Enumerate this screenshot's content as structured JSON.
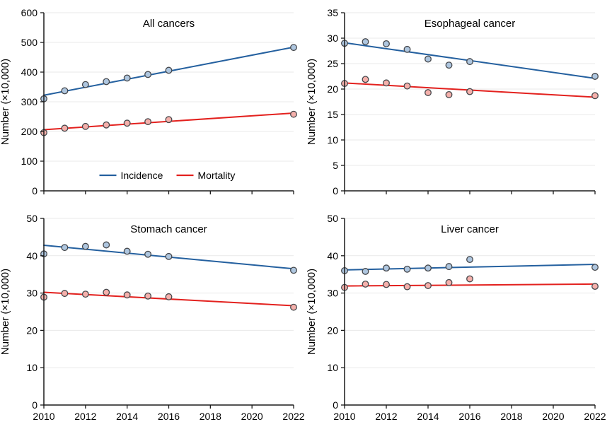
{
  "figure": {
    "legend": {
      "incidence_label": "Incidence",
      "mortality_label": "Mortality"
    },
    "colors": {
      "incidence_line": "#24609f",
      "incidence_marker_fill": "#aec6df",
      "mortality_line": "#e3211e",
      "mortality_marker_fill": "#f5b0ab",
      "marker_stroke": "#45474b",
      "axis": "#1a1a1a",
      "gridline": "#e9e9e9"
    }
  },
  "chart_data": [
    {
      "type": "scatter",
      "title": "All cancers",
      "ylabel": "Number (×10,000)",
      "xlabel": "",
      "x": [
        2010,
        2011,
        2012,
        2013,
        2014,
        2015,
        2016,
        2022
      ],
      "xlim": [
        2010,
        2022
      ],
      "xticks": [
        2010,
        2012,
        2014,
        2016,
        2018,
        2020,
        2022
      ],
      "ylim": [
        0,
        600
      ],
      "yticks": [
        0,
        100,
        200,
        300,
        400,
        500,
        600
      ],
      "grid": "horizontal",
      "legend_position": "inside-bottom-center",
      "series": [
        {
          "name": "Incidence",
          "values": [
            310,
            337,
            358,
            368,
            380,
            392,
            406,
            483
          ],
          "trend_2010_2022": [
            322,
            484
          ]
        },
        {
          "name": "Mortality",
          "values": [
            196,
            211,
            217,
            222,
            228,
            233,
            240,
            258
          ],
          "trend_2010_2022": [
            206,
            262
          ]
        }
      ]
    },
    {
      "type": "scatter",
      "title": "Esophageal cancer",
      "ylabel": "Number (×10,000)",
      "xlabel": "",
      "x": [
        2010,
        2011,
        2012,
        2013,
        2014,
        2015,
        2016,
        2022
      ],
      "xlim": [
        2010,
        2022
      ],
      "xticks": [
        2010,
        2012,
        2014,
        2016,
        2018,
        2020,
        2022
      ],
      "ylim": [
        0,
        35
      ],
      "yticks": [
        0,
        5,
        10,
        15,
        20,
        25,
        30,
        35
      ],
      "grid": "horizontal",
      "legend_position": "none",
      "series": [
        {
          "name": "Incidence",
          "values": [
            29.0,
            29.3,
            28.9,
            27.8,
            25.9,
            24.7,
            25.4,
            22.5
          ],
          "trend_2010_2022": [
            29.1,
            22.1
          ]
        },
        {
          "name": "Mortality",
          "values": [
            21.1,
            21.9,
            21.2,
            20.6,
            19.3,
            18.9,
            19.5,
            18.7
          ],
          "trend_2010_2022": [
            21.2,
            18.4
          ]
        }
      ]
    },
    {
      "type": "scatter",
      "title": "Stomach cancer",
      "ylabel": "Number (×10,000)",
      "xlabel": "",
      "x": [
        2010,
        2011,
        2012,
        2013,
        2014,
        2015,
        2016,
        2022
      ],
      "xlim": [
        2010,
        2022
      ],
      "xticks": [
        2010,
        2012,
        2014,
        2016,
        2018,
        2020,
        2022
      ],
      "ylim": [
        0,
        50
      ],
      "yticks": [
        0,
        10,
        20,
        30,
        40,
        50
      ],
      "grid": "horizontal",
      "legend_position": "none",
      "series": [
        {
          "name": "Incidence",
          "values": [
            40.5,
            42.2,
            42.5,
            42.9,
            41.2,
            40.4,
            39.8,
            36.1
          ],
          "trend_2010_2022": [
            42.8,
            36.5
          ]
        },
        {
          "name": "Mortality",
          "values": [
            28.9,
            29.9,
            29.7,
            30.2,
            29.5,
            29.2,
            29.0,
            26.2
          ],
          "trend_2010_2022": [
            30.2,
            26.6
          ]
        }
      ]
    },
    {
      "type": "scatter",
      "title": "Liver cancer",
      "ylabel": "Number (×10,000)",
      "xlabel": "",
      "x": [
        2010,
        2011,
        2012,
        2013,
        2014,
        2015,
        2016,
        2022
      ],
      "xlim": [
        2010,
        2022
      ],
      "xticks": [
        2010,
        2012,
        2014,
        2016,
        2018,
        2020,
        2022
      ],
      "ylim": [
        0,
        50
      ],
      "yticks": [
        0,
        10,
        20,
        30,
        40,
        50
      ],
      "grid": "horizontal",
      "legend_position": "none",
      "series": [
        {
          "name": "Incidence",
          "values": [
            36.0,
            35.8,
            36.7,
            36.4,
            36.7,
            37.1,
            39.0,
            36.9
          ],
          "trend_2010_2022": [
            36.2,
            37.7
          ]
        },
        {
          "name": "Mortality",
          "values": [
            31.5,
            32.4,
            32.3,
            31.7,
            32.0,
            32.8,
            33.8,
            31.8
          ],
          "trend_2010_2022": [
            31.9,
            32.4
          ]
        }
      ]
    }
  ]
}
